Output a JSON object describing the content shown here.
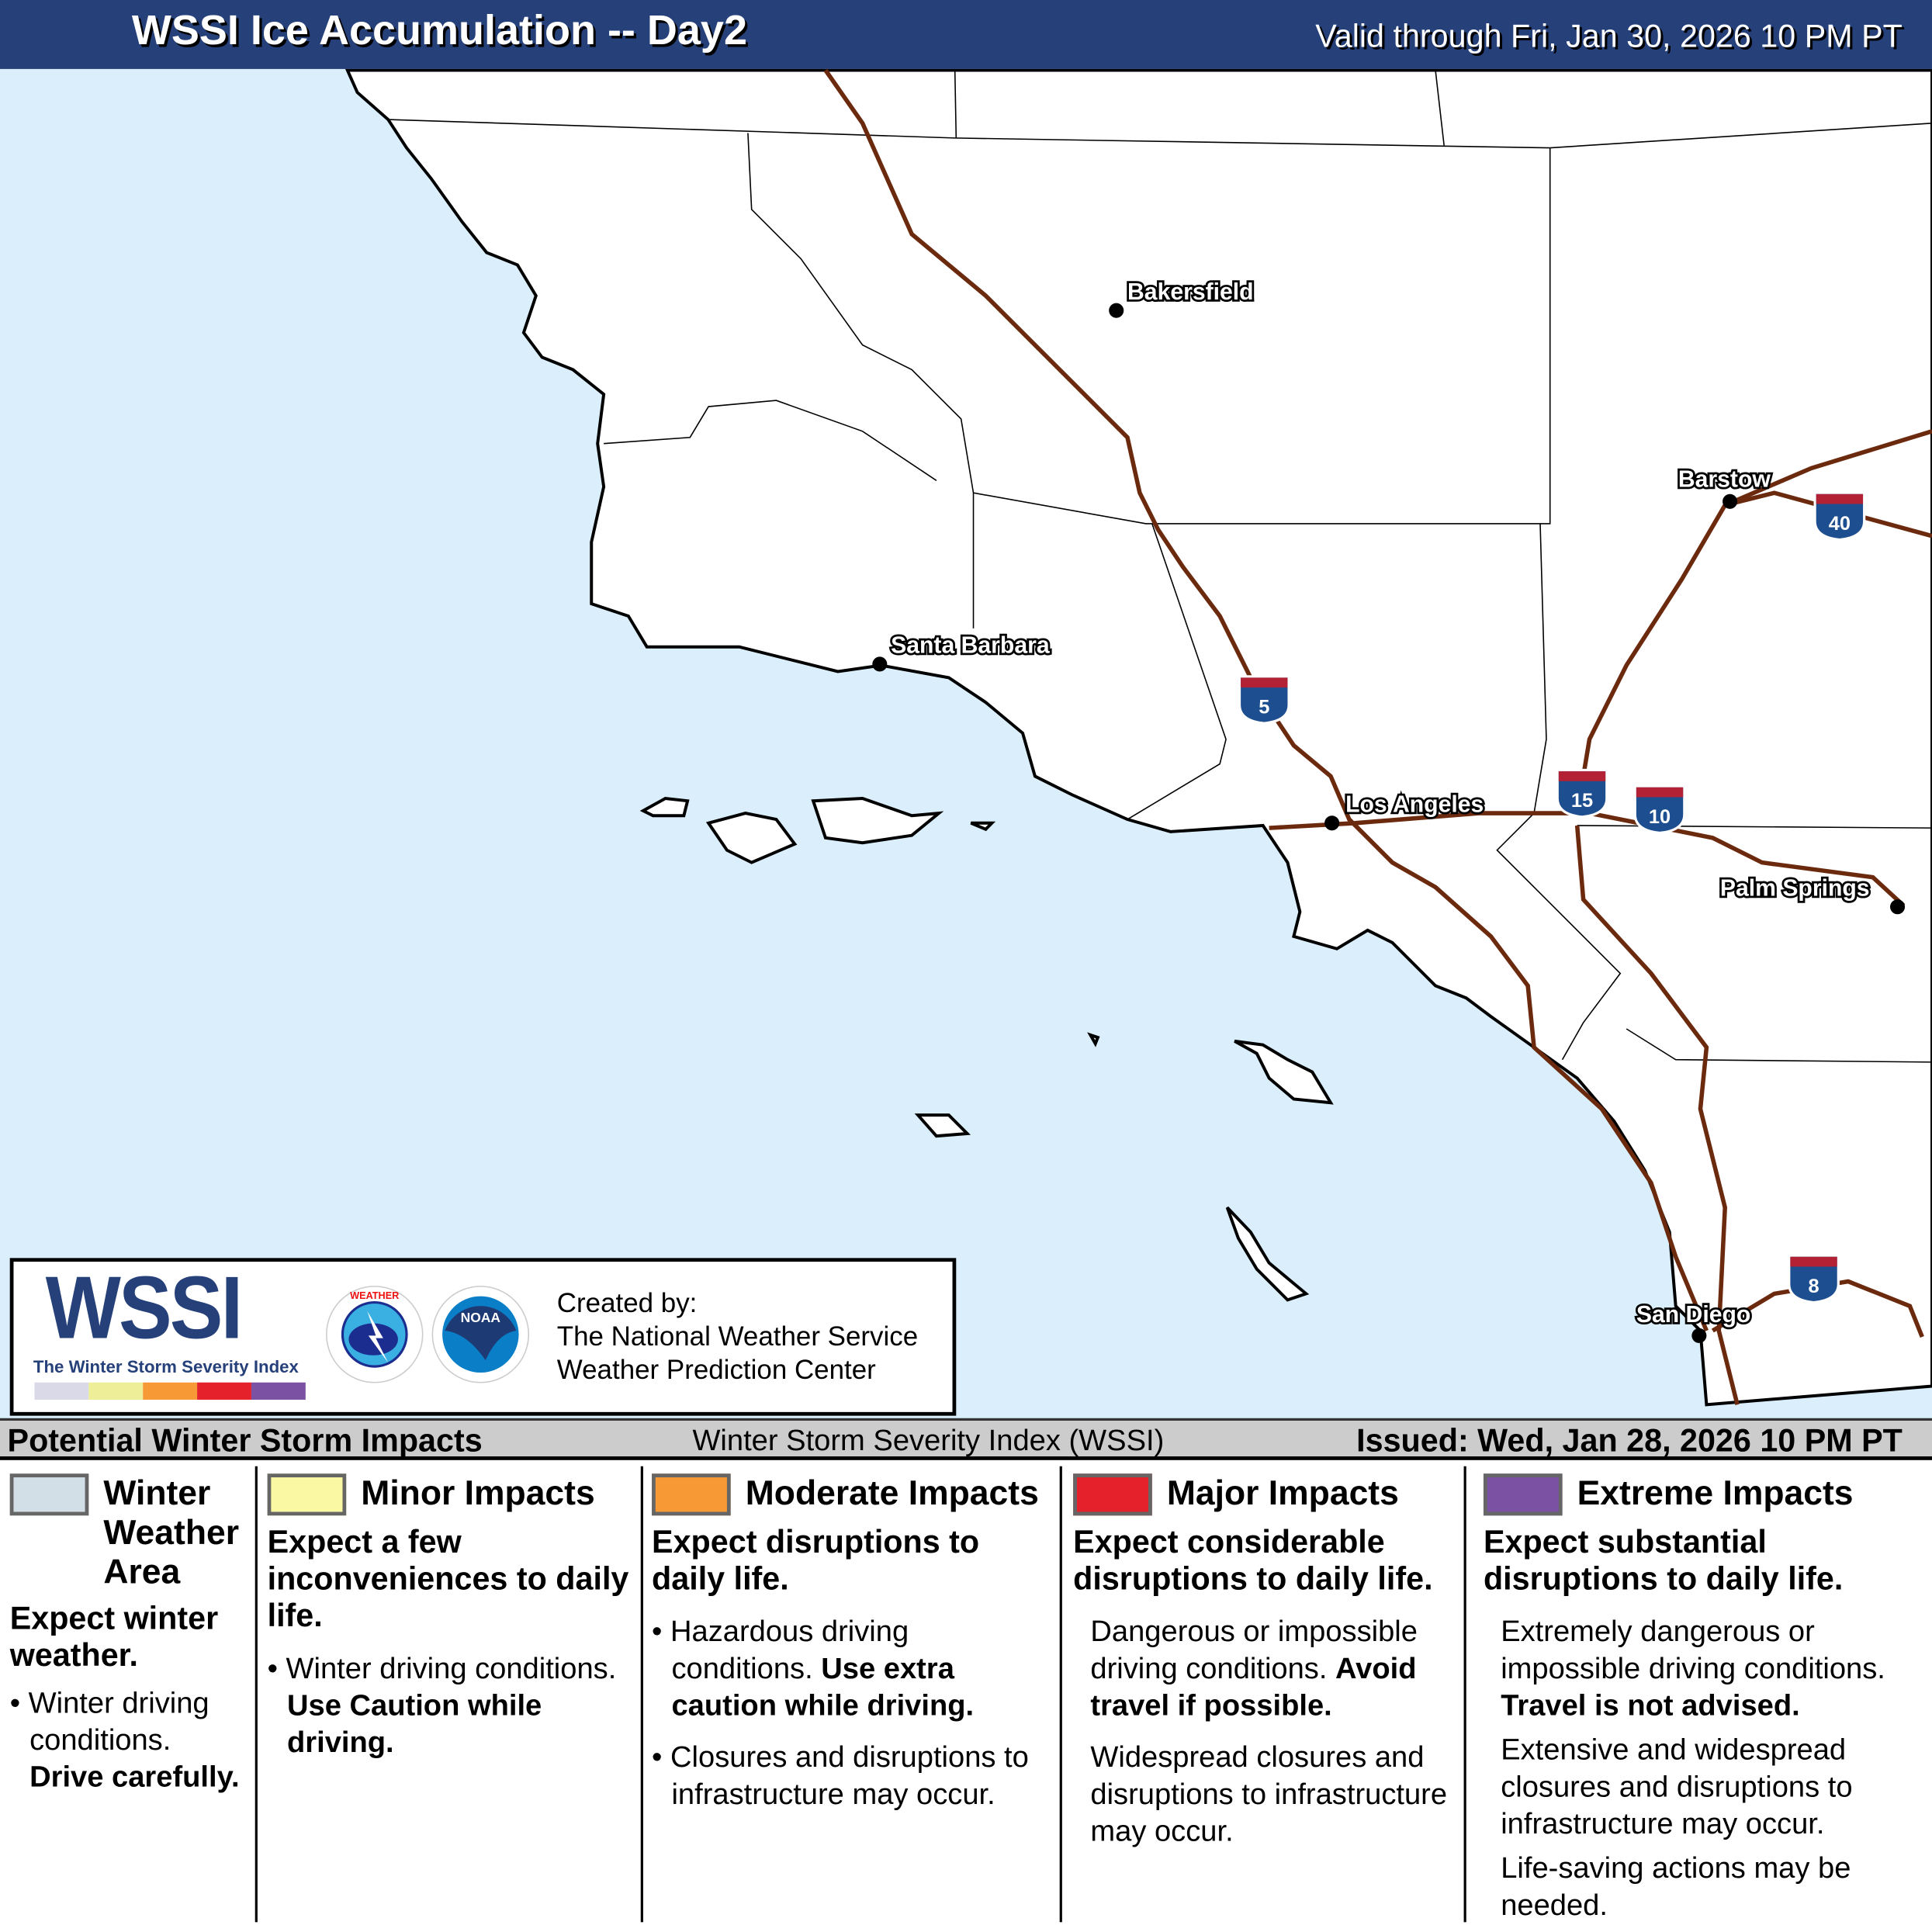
{
  "header": {
    "title": "WSSI Ice Accumulation -- Day2",
    "valid": "Valid through Fri, Jan 30, 2026 10 PM PT",
    "color": "#26407a"
  },
  "map": {
    "ocean_color": "#dbeefc",
    "land_color": "#ffffff",
    "highway_color": "#6b2a0e",
    "cities": [
      "Bakersfield",
      "Barstow",
      "Santa Barbara",
      "Los Angeles",
      "Palm Springs",
      "San Diego"
    ],
    "interstates": [
      "5",
      "15",
      "10",
      "40",
      "8"
    ]
  },
  "logo": {
    "wordmark": "WSSI",
    "tagline": "The Winter Storm Severity Index",
    "nws": "NATIONAL WEATHER SERVICE",
    "noaa": "NOAA",
    "created_by": "Created by:",
    "org1": "The National Weather Service",
    "org2": "Weather Prediction Center",
    "bar_colors": [
      "#d9d9e8",
      "#eeee99",
      "#f79a36",
      "#e5222b",
      "#7b52a3"
    ]
  },
  "legend_bar": {
    "left": "Potential Winter Storm Impacts",
    "center": "Winter Storm Severity Index (WSSI)",
    "right": "Issued: Wed, Jan 28, 2026 10 PM PT"
  },
  "legend": [
    {
      "title": "Winter Weather Area",
      "color": "#d3dfe7",
      "summary": "Expect winter weather.",
      "detail": "Winter driving conditions.",
      "detail_bold": "Drive carefully."
    },
    {
      "title": "Minor Impacts",
      "color": "#faf8a2",
      "summary": "Expect a few inconveniences to daily life.",
      "detail": "Winter driving conditions.",
      "detail_bold": "Use Caution while driving."
    },
    {
      "title": "Moderate Impacts",
      "color": "#f79a36",
      "summary": "Expect disruptions to daily life.",
      "detail": "Hazardous driving conditions.",
      "detail_bold": "Use extra caution while driving.",
      "detail2": "Closures and disruptions to infrastructure may occur."
    },
    {
      "title": "Major Impacts",
      "color": "#e5222b",
      "summary": "Expect considerable disruptions to daily life.",
      "detail": "Dangerous or impossible driving conditions.",
      "detail_bold": "Avoid travel if possible.",
      "detail2": "Widespread closures and disruptions to infrastructure may occur."
    },
    {
      "title": "Extreme Impacts",
      "color": "#7b52a3",
      "summary": "Expect substantial disruptions to daily life.",
      "detail": "Extremely dangerous or impossible driving conditions.",
      "detail_bold": "Travel is not advised.",
      "detail2": "Extensive and widespread closures and disruptions to infrastructure may occur.",
      "detail3": "Life-saving actions may be needed."
    }
  ]
}
